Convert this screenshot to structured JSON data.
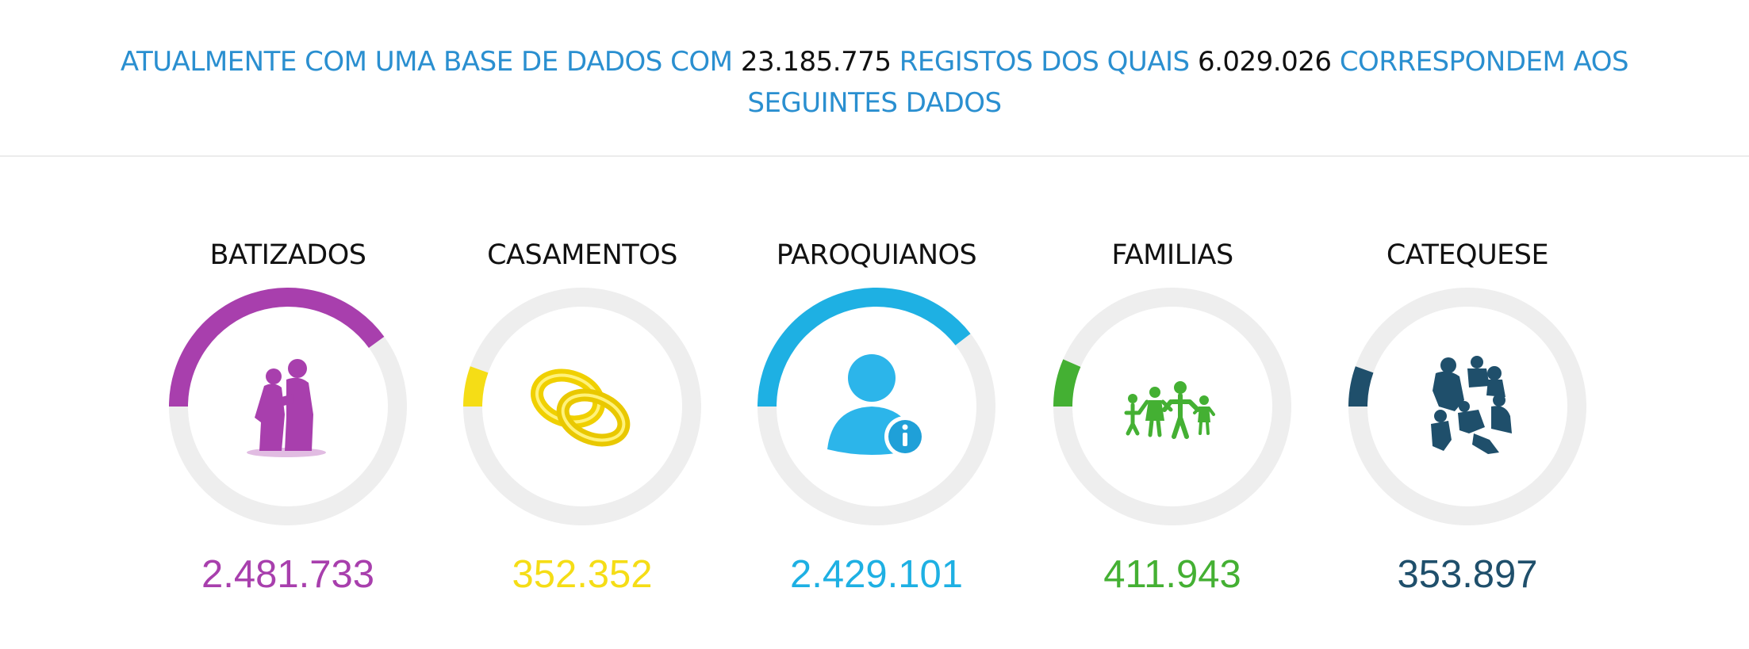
{
  "banner": {
    "part1": "ATUALMENTE COM UMA BASE DE DADOS COM",
    "total_records": "23.185.775",
    "part2": "REGISTOS DOS QUAIS",
    "matched_records": "6.029.026",
    "part3": "CORRESPONDEM AOS SEGUINTES DADOS"
  },
  "stats": [
    {
      "title": "BATIZADOS",
      "value": "2.481.733",
      "fraction": 0.4,
      "color": "#a83fad",
      "icon": "baptism-icon"
    },
    {
      "title": "CASAMENTOS",
      "value": "352.352",
      "fraction": 0.055,
      "color": "#f5dd16",
      "icon": "wedding-rings-icon"
    },
    {
      "title": "PAROQUIANOS",
      "value": "2.429.101",
      "fraction": 0.395,
      "color": "#1eb0e3",
      "icon": "parishioner-info-icon"
    },
    {
      "title": "FAMILIAS",
      "value": "411.943",
      "fraction": 0.065,
      "color": "#44b033",
      "icon": "family-icon"
    },
    {
      "title": "CATEQUESE",
      "value": "353.897",
      "fraction": 0.055,
      "color": "#1f4f6b",
      "icon": "catechesis-icon"
    }
  ]
}
